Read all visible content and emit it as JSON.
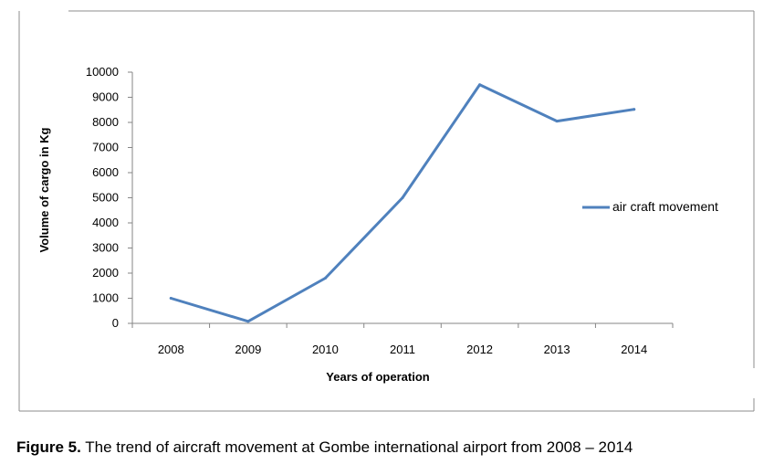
{
  "caption": {
    "label": "Figure 5.",
    "text": " The trend of aircraft movement at Gombe international airport from 2008 – 2014"
  },
  "chart_data": {
    "type": "line",
    "title": "",
    "xlabel": "Years of operation",
    "ylabel": "Volume of cargo in Kg",
    "categories": [
      "2008",
      "2009",
      "2010",
      "2011",
      "2012",
      "2013",
      "2014"
    ],
    "series": [
      {
        "name": "air craft movement",
        "values": [
          1000,
          80,
          1800,
          5000,
          9500,
          8050,
          8520
        ],
        "color": "#4f81bd"
      }
    ],
    "ylim": [
      0,
      10000
    ],
    "yticks": [
      "0",
      "1000",
      "2000",
      "3000",
      "4000",
      "5000",
      "6000",
      "7000",
      "8000",
      "9000",
      "10000"
    ],
    "grid": false,
    "legend_position": "right"
  }
}
